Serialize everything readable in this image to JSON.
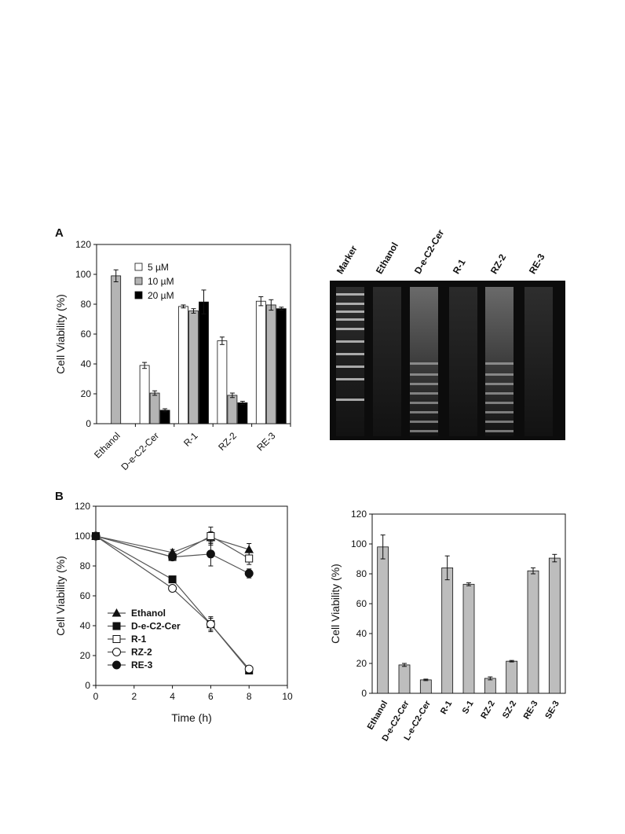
{
  "panels": {
    "a": "A",
    "b": "B"
  },
  "chart_data": [
    {
      "type": "bar",
      "ylabel": "Cell Viability (%)",
      "xlabel": "",
      "ylim": [
        0,
        120
      ],
      "yticks": [
        "0",
        "20",
        "40",
        "60",
        "80",
        "100",
        "120"
      ],
      "categories": [
        "Ethanol",
        "D-e-C2-Cer",
        "R-1",
        "RZ-2",
        "RE-3"
      ],
      "legend_position": "top-left",
      "series": [
        {
          "name": "5 µM",
          "color": "#ffffff",
          "values": [
            null,
            39,
            78.5,
            55.5,
            82
          ],
          "errors": [
            0,
            2,
            1,
            2.5,
            3
          ]
        },
        {
          "name": "10 µM",
          "color": "#b4b4b4",
          "values": [
            99,
            20.5,
            75.5,
            19,
            79.5
          ],
          "errors": [
            4,
            1.5,
            1.5,
            1.5,
            3.5
          ]
        },
        {
          "name": "20 µM",
          "color": "#000000",
          "values": [
            null,
            9,
            81.5,
            14,
            77
          ],
          "errors": [
            0,
            1,
            8,
            1,
            1
          ]
        }
      ]
    },
    {
      "type": "line",
      "xlabel": "Time (h)",
      "ylabel": "Cell Viability (%)",
      "xlim": [
        0,
        10
      ],
      "ylim": [
        0,
        120
      ],
      "xticks": [
        "0",
        "2",
        "4",
        "6",
        "8",
        "10"
      ],
      "yticks": [
        "0",
        "20",
        "40",
        "60",
        "80",
        "100",
        "120"
      ],
      "legend_position": "bottom-left",
      "series": [
        {
          "name": "Ethanol",
          "marker": "triangle-filled",
          "x": [
            0,
            4,
            6,
            8
          ],
          "y": [
            100,
            89,
            99,
            91
          ],
          "errors": [
            0,
            2,
            4,
            4
          ]
        },
        {
          "name": "D-e-C2-Cer",
          "marker": "square-filled",
          "x": [
            0,
            4,
            6,
            8
          ],
          "y": [
            100,
            71,
            41,
            10
          ],
          "errors": [
            0,
            1,
            4,
            1
          ]
        },
        {
          "name": "R-1",
          "marker": "square-open",
          "x": [
            0,
            4,
            6,
            8
          ],
          "y": [
            100,
            86,
            100,
            85
          ],
          "errors": [
            0,
            2,
            6,
            4
          ]
        },
        {
          "name": "RZ-2",
          "marker": "circle-open",
          "x": [
            0,
            4,
            6,
            8
          ],
          "y": [
            100,
            65,
            41,
            11
          ],
          "errors": [
            0,
            2,
            5,
            1
          ]
        },
        {
          "name": "RE-3",
          "marker": "circle-filled",
          "x": [
            0,
            4,
            6,
            8
          ],
          "y": [
            100,
            86,
            88,
            75
          ],
          "errors": [
            0,
            2,
            8,
            3
          ]
        }
      ]
    },
    {
      "type": "bar",
      "ylabel": "Cell Viability (%)",
      "xlabel": "",
      "ylim": [
        0,
        120
      ],
      "yticks": [
        "0",
        "20",
        "40",
        "60",
        "80",
        "100",
        "120"
      ],
      "categories": [
        "Ethanol",
        "D-e-C2-Cer",
        "L-e-C2-Cer",
        "R-1",
        "S-1",
        "RZ-2",
        "SZ-2",
        "RE-3",
        "SE-3"
      ],
      "values": [
        98,
        19,
        9,
        84,
        73,
        10,
        21.5,
        82,
        90.5
      ],
      "errors": [
        8,
        1,
        0.5,
        8,
        1,
        1,
        0.5,
        2,
        2.5
      ],
      "bar_color": "#bdbdbd"
    }
  ],
  "gel": {
    "lane_labels": [
      "Marker",
      "Ethanol",
      "D-e-C2-Cer",
      "R-1",
      "RZ-2",
      "RE-3"
    ]
  }
}
